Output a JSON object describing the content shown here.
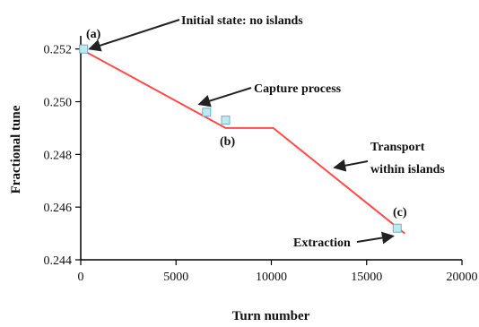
{
  "chart_data": {
    "type": "line",
    "title": "",
    "xlabel": "Turn number",
    "ylabel": "Fractional tune",
    "xlim": [
      0,
      20000
    ],
    "ylim": [
      0.244,
      0.2525
    ],
    "xticks": [
      0,
      5000,
      10000,
      15000,
      20000
    ],
    "yticks": [
      0.244,
      0.246,
      0.248,
      0.25,
      0.252
    ],
    "ytick_labels": [
      "0.244",
      "0.246",
      "0.248",
      "0.250",
      "0.252"
    ],
    "grid": false,
    "series": [
      {
        "color": "#ff4a4a",
        "x": [
          0,
          7600,
          10100,
          17000
        ],
        "y": [
          0.252,
          0.249,
          0.249,
          0.245
        ]
      }
    ],
    "markers": [
      {
        "x": 150,
        "y": 0.252
      },
      {
        "x": 6600,
        "y": 0.2496
      },
      {
        "x": 7600,
        "y": 0.2493
      },
      {
        "x": 16600,
        "y": 0.2452
      }
    ],
    "marker_color": "#bfe8f0",
    "marker_edge": "#6fb0c4",
    "annotations": [
      {
        "id": "initial",
        "text": "Initial state: no islands",
        "arrow_to": [
          450,
          0.252
        ]
      },
      {
        "id": "capture",
        "text": "Capture process",
        "arrow_to": [
          6200,
          0.2499
        ]
      },
      {
        "id": "transport1",
        "text": "Transport"
      },
      {
        "id": "transport2",
        "text": "within islands",
        "arrow_to": [
          13300,
          0.2475
        ]
      },
      {
        "id": "extraction",
        "text": "Extraction",
        "arrow_to": [
          16400,
          0.2449
        ]
      }
    ],
    "point_labels": [
      {
        "id": "a",
        "text": "(a)"
      },
      {
        "id": "b",
        "text": "(b)"
      },
      {
        "id": "c",
        "text": "(c)"
      }
    ]
  }
}
